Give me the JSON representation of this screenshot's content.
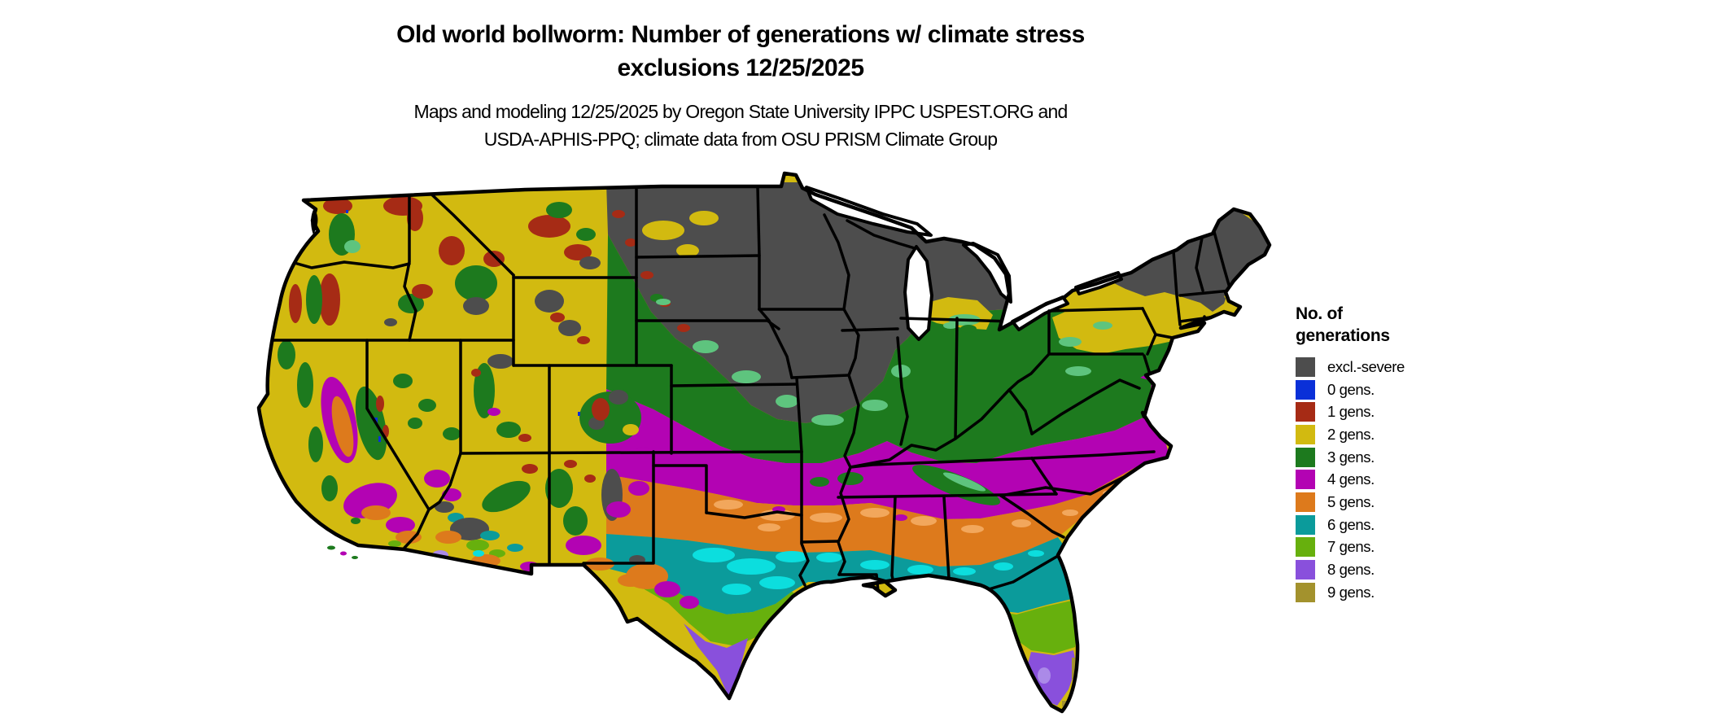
{
  "title": {
    "line1": "Old world bollworm: Number of generations w/ climate stress",
    "line2": "exclusions 12/25/2025"
  },
  "subtitle": {
    "line1": "Maps and modeling 12/25/2025 by Oregon State University IPPC USPEST.ORG and",
    "line2": "USDA-APHIS-PPQ; climate data from OSU PRISM Climate Group"
  },
  "legend": {
    "title_line1": "No. of",
    "title_line2": "generations",
    "items": [
      {
        "label": "excl.-severe",
        "color": "gray"
      },
      {
        "label": "0 gens.",
        "color": "blue"
      },
      {
        "label": "1 gens.",
        "color": "red"
      },
      {
        "label": "2 gens.",
        "color": "yellow"
      },
      {
        "label": "3 gens.",
        "color": "green"
      },
      {
        "label": "4 gens.",
        "color": "magenta"
      },
      {
        "label": "5 gens.",
        "color": "orange"
      },
      {
        "label": "6 gens.",
        "color": "teal"
      },
      {
        "label": "7 gens.",
        "color": "lime"
      },
      {
        "label": "8 gens.",
        "color": "purple"
      },
      {
        "label": "9 gens.",
        "color": "olive"
      }
    ]
  },
  "palette": {
    "gray": "#4d4d4d",
    "blue": "#0a30d8",
    "red": "#a62b15",
    "yellow": "#d2ba10",
    "green": "#1d7a1e",
    "green_light": "#5ec47e",
    "magenta": "#b303b3",
    "orange": "#dd7a1c",
    "orange_light": "#f2a75c",
    "teal": "#0b9b9b",
    "cyan": "#0cdede",
    "lime": "#67b00d",
    "purple": "#8950dc",
    "purple_light": "#ab8ae8",
    "olive": "#a3922d",
    "outline": "#000000",
    "water": "#ffffff"
  }
}
